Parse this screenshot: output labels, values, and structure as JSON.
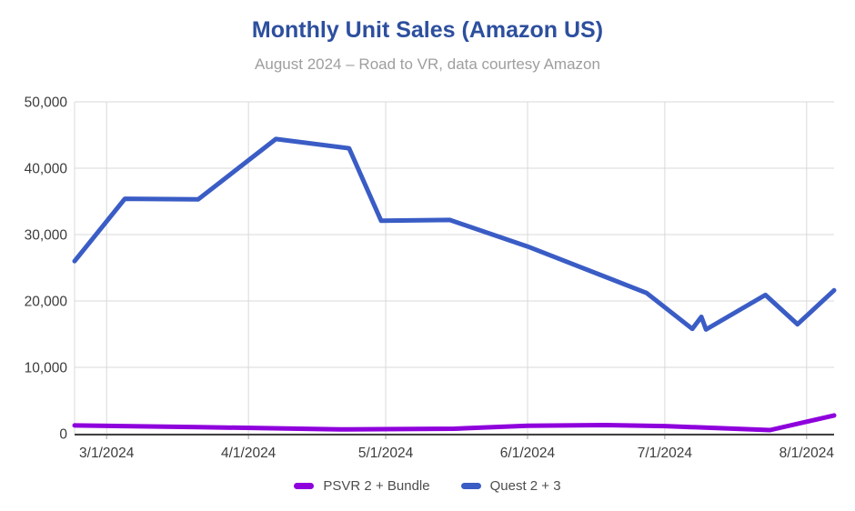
{
  "header": {
    "title": "Monthly Unit Sales (Amazon US)",
    "subtitle": "August 2024 – Road to VR, data courtesy Amazon"
  },
  "colors": {
    "title": "#2d4f9e",
    "subtitle": "#9e9e9e",
    "gridline": "#d9d9d9",
    "axis_line": "#424242",
    "tick_mark": "#9e9e9e",
    "tick_label": "#3c3c3c",
    "legend_text": "#4d4d4d",
    "psvr_line": "#8e00dc",
    "quest_line": "#3a5cc5"
  },
  "chart_data": {
    "type": "line",
    "title": "Monthly Unit Sales (Amazon US)",
    "subtitle": "August 2024 – Road to VR, data courtesy Amazon",
    "xlabel": "",
    "ylabel": "",
    "grid": true,
    "legend_position": "bottom",
    "ylim": [
      0,
      50000
    ],
    "y_tick_values": [
      0,
      10000,
      20000,
      30000,
      40000,
      50000
    ],
    "y_tick_labels": [
      "0",
      "10,000",
      "20,000",
      "30,000",
      "40,000",
      "50,000"
    ],
    "x_range": [
      "2/23/2024",
      "8/7/2024"
    ],
    "x_tick_labels": [
      "3/1/2024",
      "4/1/2024",
      "5/1/2024",
      "6/1/2024",
      "7/1/2024",
      "8/1/2024"
    ],
    "series": [
      {
        "name": "PSVR 2 + Bundle",
        "color": "#8e00dc",
        "points": [
          {
            "date": "2/23/2024",
            "value": 1250
          },
          {
            "date": "3/21/2024",
            "value": 1000
          },
          {
            "date": "4/21/2024",
            "value": 650
          },
          {
            "date": "5/16/2024",
            "value": 750
          },
          {
            "date": "6/1/2024",
            "value": 1200
          },
          {
            "date": "6/18/2024",
            "value": 1300
          },
          {
            "date": "7/1/2024",
            "value": 1150
          },
          {
            "date": "7/24/2024",
            "value": 550
          },
          {
            "date": "8/7/2024",
            "value": 2750
          }
        ]
      },
      {
        "name": "Quest 2 + 3",
        "color": "#3a5cc5",
        "points": [
          {
            "date": "2/23/2024",
            "value": 26000
          },
          {
            "date": "3/5/2024",
            "value": 35400
          },
          {
            "date": "3/21/2024",
            "value": 35300
          },
          {
            "date": "4/7/2024",
            "value": 44400
          },
          {
            "date": "4/23/2024",
            "value": 43000
          },
          {
            "date": "4/30/2024",
            "value": 32100
          },
          {
            "date": "5/15/2024",
            "value": 32200
          },
          {
            "date": "6/1/2024",
            "value": 28200
          },
          {
            "date": "6/17/2024",
            "value": 23900
          },
          {
            "date": "6/27/2024",
            "value": 21200
          },
          {
            "date": "7/7/2024",
            "value": 15800
          },
          {
            "date": "7/9/2024",
            "value": 17600
          },
          {
            "date": "7/10/2024",
            "value": 15700
          },
          {
            "date": "7/23/2024",
            "value": 20900
          },
          {
            "date": "7/30/2024",
            "value": 16500
          },
          {
            "date": "8/7/2024",
            "value": 21600
          }
        ]
      }
    ]
  },
  "legend": {
    "items": [
      {
        "label": "PSVR 2 + Bundle"
      },
      {
        "label": "Quest 2 + 3"
      }
    ]
  }
}
